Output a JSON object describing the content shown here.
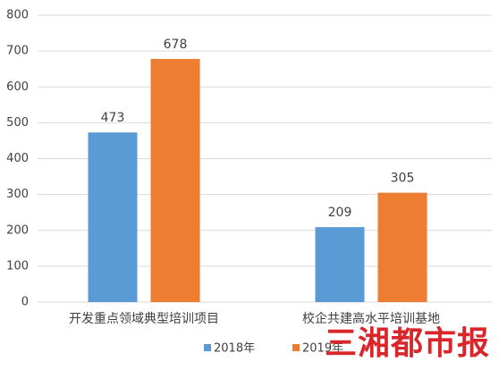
{
  "chart_data": {
    "type": "bar",
    "categories": [
      "开发重点领域典型培训项目",
      "校企共建高水平培训基地"
    ],
    "series": [
      {
        "name": "2018年",
        "color": "#5b9bd5",
        "values": [
          473,
          209
        ]
      },
      {
        "name": "2019年",
        "color": "#ed7d31",
        "values": [
          678,
          305
        ]
      }
    ],
    "ylim": [
      0,
      800
    ],
    "yticks": [
      0,
      100,
      200,
      300,
      400,
      500,
      600,
      700,
      800
    ],
    "grid": true,
    "legend": "bottom",
    "watermark": "三湘都市报"
  }
}
